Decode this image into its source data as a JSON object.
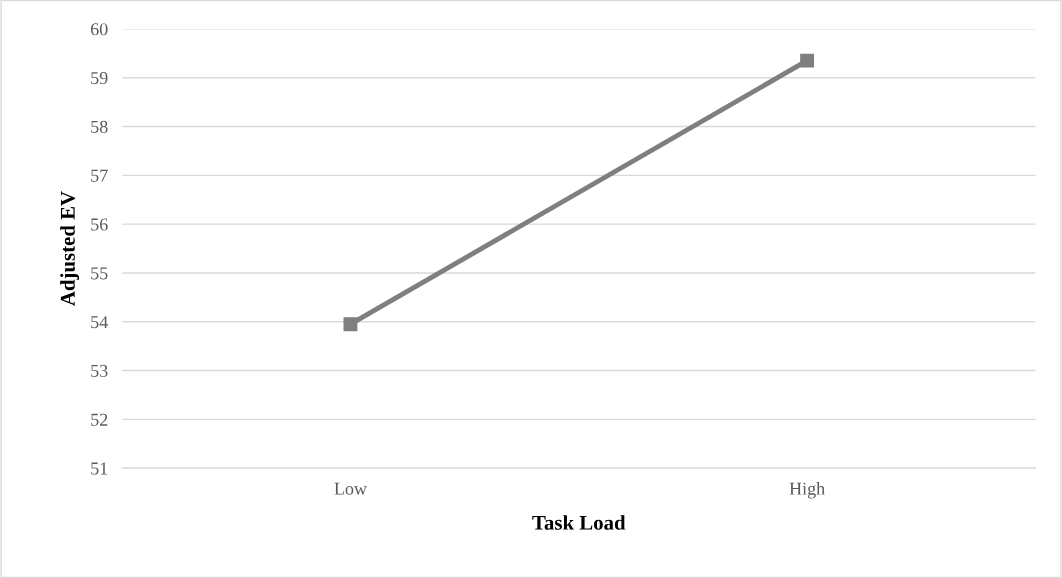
{
  "chart_data": {
    "type": "line",
    "xlabel": "Task Load",
    "ylabel": "Adjusted EV",
    "categories": [
      "Low",
      "High"
    ],
    "series": [
      {
        "color": "#7f7f7f",
        "values": [
          53.95,
          59.35
        ]
      }
    ],
    "ylim": [
      51,
      60
    ],
    "yticks": [
      51,
      52,
      53,
      54,
      55,
      56,
      57,
      58,
      59,
      60
    ],
    "grid": "y",
    "marker": "square",
    "line_style": "solid",
    "legend": false
  }
}
